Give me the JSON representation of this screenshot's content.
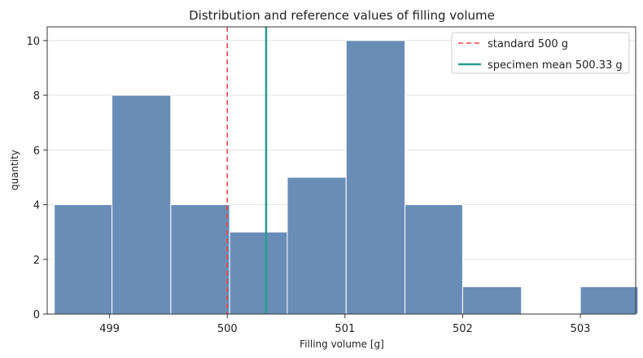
{
  "chart_data": {
    "type": "bar",
    "title": "Distribution and reference values of filling volume",
    "xlabel": "Filling volume [g]",
    "ylabel": "quantity",
    "xlim": [
      498.47,
      503.47
    ],
    "ylim": [
      0,
      10.5
    ],
    "xticks": [
      "499",
      "500",
      "501",
      "502",
      "503"
    ],
    "xtick_values": [
      499,
      500,
      501,
      502,
      503
    ],
    "yticks": [
      "0",
      "2",
      "4",
      "6",
      "8",
      "10"
    ],
    "ytick_values": [
      0,
      2,
      4,
      6,
      8,
      10
    ],
    "grid": "horizontal",
    "legend_position": "top-right",
    "bin_edges": [
      498.5,
      499.0,
      499.5,
      500.0,
      500.5,
      501.0,
      501.5,
      502.0,
      502.5,
      503.0,
      503.5
    ],
    "bins": [
      {
        "start": 498.53,
        "end": 499.02,
        "count": 4
      },
      {
        "start": 499.02,
        "end": 499.52,
        "count": 8
      },
      {
        "start": 499.52,
        "end": 500.02,
        "count": 4
      },
      {
        "start": 500.02,
        "end": 500.51,
        "count": 3
      },
      {
        "start": 500.51,
        "end": 501.01,
        "count": 5
      },
      {
        "start": 501.01,
        "end": 501.51,
        "count": 10
      },
      {
        "start": 501.51,
        "end": 502.0,
        "count": 4
      },
      {
        "start": 502.0,
        "end": 502.5,
        "count": 1
      },
      {
        "start": 502.5,
        "end": 503.0,
        "count": 0
      },
      {
        "start": 503.0,
        "end": 503.49,
        "count": 1
      }
    ],
    "reference_lines": [
      {
        "name": "standard 500 g",
        "x": 500.0,
        "style": "dashed",
        "color": "#e8474c"
      },
      {
        "name": "specimen mean 500.33 g",
        "x": 500.33,
        "style": "solid",
        "color": "#2a9d8f"
      }
    ],
    "bar_color": "#6a8db8"
  }
}
